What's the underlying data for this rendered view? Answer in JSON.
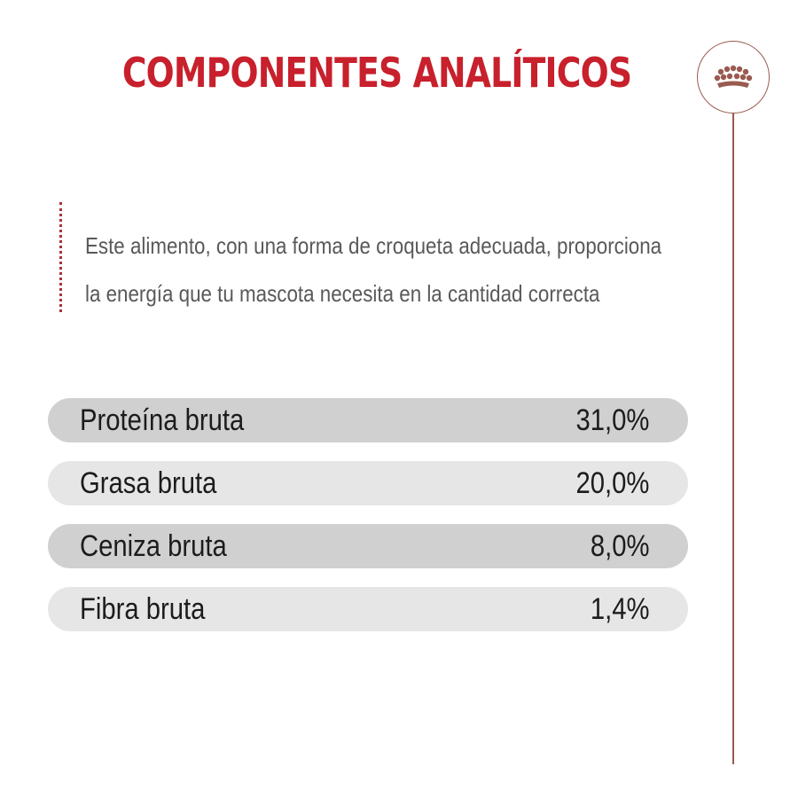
{
  "header": {
    "title": "COMPONENTES ANALÍTICOS",
    "logo_icon": "crown-icon"
  },
  "description": {
    "lines": [
      "Este alimento, con una forma de croqueta adecuada, proporciona",
      "la energía que tu mascota necesita en la cantidad correcta"
    ]
  },
  "components": [
    {
      "label": "Proteína bruta",
      "value": "31,0%"
    },
    {
      "label": "Grasa bruta",
      "value": "20,0%"
    },
    {
      "label": "Ceniza bruta",
      "value": "8,0%"
    },
    {
      "label": "Fibra bruta",
      "value": "1,4%"
    }
  ],
  "colors": {
    "title": "#c8202c",
    "accent_line": "#9a5a50",
    "row_dark": "#d0d0d0",
    "row_light": "#e6e6e6",
    "text": "#1c1c1c",
    "description": "#595959"
  }
}
